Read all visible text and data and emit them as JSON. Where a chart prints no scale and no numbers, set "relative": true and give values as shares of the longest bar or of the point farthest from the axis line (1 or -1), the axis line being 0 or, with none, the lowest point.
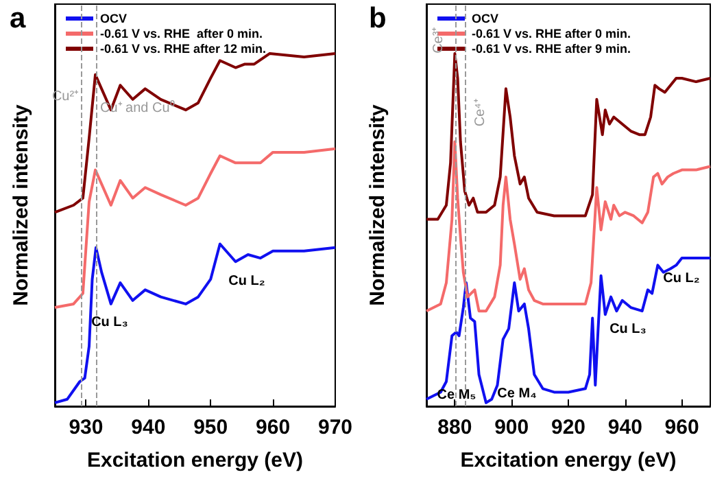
{
  "chart_data": [
    {
      "type": "line",
      "title": "a",
      "xlabel": "Excitation energy (eV)",
      "ylabel": "Normalized intensity",
      "relative": true,
      "tick_labels": "x",
      "legend": "top left",
      "xlim": [
        925,
        970
      ],
      "xticks": [
        930,
        940,
        950,
        960,
        970
      ],
      "series": [
        {
          "name": "OCV",
          "color": "#1010f0",
          "x": [
            925,
            927,
            929,
            929.8,
            930.5,
            931,
            931.6,
            932.5,
            934,
            935.5,
            937.5,
            939.5,
            942,
            946,
            948,
            950,
            951.5,
            954,
            956,
            958,
            960,
            965,
            970
          ],
          "values": [
            0.01,
            0.02,
            0.07,
            0.08,
            0.17,
            0.36,
            0.45,
            0.38,
            0.29,
            0.35,
            0.3,
            0.33,
            0.31,
            0.29,
            0.31,
            0.36,
            0.46,
            0.41,
            0.43,
            0.42,
            0.44,
            0.44,
            0.45
          ]
        },
        {
          "name": "-0.61 V vs. RHE  after 0 min.",
          "color": "#f46a6a",
          "x": [
            925,
            928,
            929.5,
            930.5,
            931.5,
            932.5,
            934,
            935.5,
            937.5,
            939.5,
            942,
            946,
            948,
            950,
            951.5,
            954,
            956,
            958,
            960,
            965,
            970
          ],
          "values": [
            0.28,
            0.29,
            0.32,
            0.58,
            0.67,
            0.63,
            0.57,
            0.64,
            0.59,
            0.62,
            0.6,
            0.57,
            0.59,
            0.66,
            0.71,
            0.69,
            0.69,
            0.69,
            0.72,
            0.72,
            0.73
          ]
        },
        {
          "name": "-0.61 V vs. RHE after 12 min.",
          "color": "#800000",
          "x": [
            925,
            928,
            929.5,
            930.5,
            931.5,
            932.5,
            934,
            935.5,
            937.5,
            939.5,
            942,
            946,
            948,
            950,
            951.5,
            954,
            955.5,
            957,
            959.5,
            965,
            970
          ],
          "values": [
            0.55,
            0.57,
            0.59,
            0.76,
            0.94,
            0.9,
            0.84,
            0.91,
            0.87,
            0.9,
            0.87,
            0.84,
            0.86,
            0.93,
            0.98,
            0.96,
            0.97,
            0.97,
            1.0,
            0.99,
            1.0
          ]
        }
      ],
      "ref_lines": [
        {
          "axis": "x",
          "value": 929.2,
          "label": "Cu²⁺",
          "color": "#999999",
          "line_style": "dashed"
        },
        {
          "axis": "x",
          "value": 931.6,
          "label": "Cu⁺ and Cu⁰",
          "color": "#999999",
          "line_style": "dashed"
        }
      ],
      "annotations": [
        "Cu L₃",
        "Cu L₂"
      ]
    },
    {
      "type": "line",
      "title": "b",
      "xlabel": "Excitation energy (eV)",
      "ylabel": "Normalized intensity",
      "relative": true,
      "tick_labels": "x",
      "legend": "top left",
      "xlim": [
        870,
        970
      ],
      "xticks": [
        880,
        900,
        920,
        940,
        960
      ],
      "series": [
        {
          "name": "OCV",
          "color": "#1010f0",
          "x": [
            870,
            875,
            877,
            879,
            880.5,
            881.5,
            883,
            884,
            885.5,
            887,
            888.5,
            891,
            893,
            895,
            897,
            899,
            901,
            902.5,
            904.5,
            906,
            908,
            911,
            915,
            920,
            926,
            927.5,
            928.5,
            929.5,
            930.5,
            931.5,
            933,
            935,
            937,
            939,
            942,
            946,
            948,
            949.5,
            951.5,
            953.5,
            956,
            958,
            960,
            965,
            970
          ],
          "values": [
            0.02,
            0.04,
            0.07,
            0.2,
            0.21,
            0.2,
            0.28,
            0.35,
            0.25,
            0.24,
            0.09,
            0.01,
            0.02,
            0.06,
            0.19,
            0.22,
            0.35,
            0.27,
            0.29,
            0.22,
            0.09,
            0.05,
            0.04,
            0.04,
            0.05,
            0.09,
            0.25,
            0.06,
            0.22,
            0.37,
            0.26,
            0.31,
            0.27,
            0.3,
            0.28,
            0.27,
            0.33,
            0.32,
            0.4,
            0.38,
            0.39,
            0.4,
            0.42,
            0.42,
            0.42
          ]
        },
        {
          "name": "-0.61 V vs. RHE after 0 min.",
          "color": "#f46a6a",
          "x": [
            870,
            875,
            877,
            879,
            880,
            881,
            882,
            883,
            884.5,
            887,
            888.5,
            891,
            894,
            896,
            897,
            898,
            899.5,
            901,
            903,
            904.5,
            906,
            908,
            911,
            920,
            926,
            928,
            930,
            931.5,
            933,
            935,
            936,
            938,
            940,
            943,
            946,
            948,
            950,
            951.5,
            953,
            955,
            957,
            960,
            965,
            970
          ],
          "values": [
            0.27,
            0.29,
            0.35,
            0.53,
            0.75,
            0.59,
            0.48,
            0.38,
            0.31,
            0.33,
            0.27,
            0.27,
            0.31,
            0.4,
            0.57,
            0.65,
            0.53,
            0.46,
            0.36,
            0.39,
            0.33,
            0.3,
            0.29,
            0.29,
            0.29,
            0.35,
            0.62,
            0.5,
            0.58,
            0.53,
            0.57,
            0.54,
            0.55,
            0.54,
            0.52,
            0.55,
            0.65,
            0.66,
            0.63,
            0.65,
            0.66,
            0.67,
            0.67,
            0.68
          ]
        },
        {
          "name": "-0.61 V vs. RHE after 9 min.",
          "color": "#800000",
          "x": [
            870,
            874,
            877,
            878.5,
            880,
            881,
            882,
            883.5,
            885,
            886.5,
            888,
            891,
            894,
            896,
            898,
            899.5,
            901,
            903,
            904.5,
            906,
            909,
            915,
            920,
            926,
            928.5,
            930,
            931,
            932,
            933,
            934.5,
            936,
            939,
            942,
            945,
            947,
            949,
            950.5,
            952,
            954,
            956,
            958,
            960,
            965,
            970
          ],
          "values": [
            0.53,
            0.53,
            0.57,
            0.69,
            1.0,
            0.93,
            0.75,
            0.61,
            0.57,
            0.59,
            0.55,
            0.55,
            0.57,
            0.65,
            0.9,
            0.82,
            0.71,
            0.63,
            0.65,
            0.59,
            0.55,
            0.54,
            0.54,
            0.54,
            0.6,
            0.87,
            0.82,
            0.77,
            0.84,
            0.8,
            0.82,
            0.8,
            0.78,
            0.77,
            0.77,
            0.82,
            0.91,
            0.9,
            0.89,
            0.91,
            0.93,
            0.93,
            0.92,
            0.93
          ]
        }
      ],
      "ref_lines": [
        {
          "axis": "x",
          "value": 880.1,
          "label": "Ce³⁺",
          "color": "#999999",
          "line_style": "dashed"
        },
        {
          "axis": "x",
          "value": 883.8,
          "label": "Ce⁴⁺",
          "color": "#999999",
          "line_style": "dashed"
        }
      ],
      "annotations": [
        "Ce M₅",
        "Ce M₄",
        "Cu L₃",
        "Cu L₂"
      ]
    }
  ]
}
